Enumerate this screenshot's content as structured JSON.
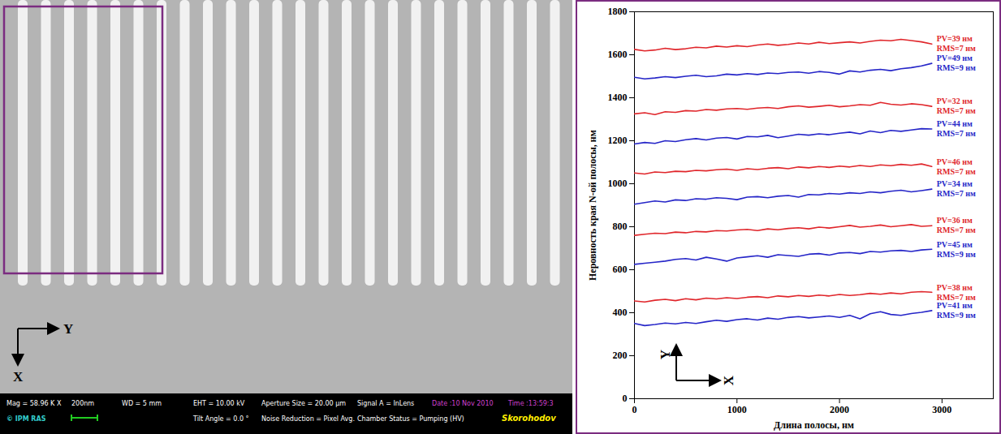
{
  "sem_image": {
    "axis_labels": {
      "right": "Y",
      "down": "X"
    },
    "info_bar": {
      "row1": [
        "Mag = 58.96 K X",
        "200nm",
        "WD =  5 mm",
        "EHT = 10.00 kV",
        "Aperture Size = 20.00 µm",
        "Signal A = InLens",
        "Date :10 Nov 2010",
        "Time :13:59:3"
      ],
      "row2": [
        "© IPM RAS",
        "Tilt Angle =  0.0 °",
        "Noise Reduction = Pixel Avg.",
        "Chamber Status = Pumping (HV)",
        "Skorohodov"
      ]
    }
  },
  "chart_data": {
    "type": "line",
    "xlabel": "Длина полосы, нм",
    "ylabel": "Неровность края N-ой полосы, нм",
    "axis_arrows": {
      "up": "Y",
      "right": "X"
    },
    "xlim": [
      0,
      3500
    ],
    "xticks": [
      0,
      1000,
      2000,
      3000
    ],
    "ylim": [
      0,
      1800
    ],
    "yticks": [
      0,
      200,
      400,
      600,
      800,
      1000,
      1200,
      1400,
      1600,
      1800
    ],
    "x": [
      0,
      100,
      200,
      300,
      400,
      500,
      600,
      700,
      800,
      900,
      1000,
      1100,
      1200,
      1300,
      1400,
      1500,
      1600,
      1700,
      1800,
      1900,
      2000,
      2100,
      2200,
      2300,
      2400,
      2500,
      2600,
      2700,
      2800,
      2900
    ],
    "series": [
      {
        "color": "#e0262b",
        "labels": [
          "PV=39 нм",
          "RMS=7 нм"
        ],
        "values": [
          1625,
          1618,
          1622,
          1630,
          1624,
          1628,
          1635,
          1632,
          1640,
          1636,
          1642,
          1638,
          1645,
          1650,
          1644,
          1648,
          1655,
          1650,
          1658,
          1652,
          1656,
          1660,
          1655,
          1662,
          1668,
          1665,
          1672,
          1666,
          1660,
          1650
        ]
      },
      {
        "color": "#2626c8",
        "labels": [
          "PV=49 нм",
          "RMS=9 нм"
        ],
        "values": [
          1495,
          1488,
          1492,
          1498,
          1494,
          1500,
          1505,
          1498,
          1502,
          1510,
          1506,
          1512,
          1508,
          1515,
          1512,
          1518,
          1520,
          1514,
          1522,
          1518,
          1510,
          1525,
          1520,
          1528,
          1532,
          1526,
          1535,
          1540,
          1548,
          1560
        ]
      },
      {
        "color": "#e0262b",
        "labels": [
          "PV=32 нм",
          "RMS=7 нм"
        ],
        "values": [
          1325,
          1330,
          1322,
          1335,
          1332,
          1340,
          1338,
          1345,
          1342,
          1348,
          1350,
          1346,
          1352,
          1355,
          1350,
          1358,
          1362,
          1356,
          1360,
          1365,
          1358,
          1362,
          1368,
          1365,
          1378,
          1370,
          1366,
          1372,
          1368,
          1360
        ]
      },
      {
        "color": "#2626c8",
        "labels": [
          "PV=44 нм",
          "RMS=7 нм"
        ],
        "values": [
          1185,
          1192,
          1188,
          1200,
          1196,
          1205,
          1210,
          1204,
          1212,
          1215,
          1208,
          1220,
          1218,
          1225,
          1214,
          1222,
          1230,
          1226,
          1232,
          1228,
          1235,
          1240,
          1232,
          1245,
          1238,
          1248,
          1244,
          1250,
          1256,
          1255
        ]
      },
      {
        "color": "#e0262b",
        "labels": [
          "PV=46 нм",
          "RMS=7 нм"
        ],
        "values": [
          1050,
          1045,
          1055,
          1052,
          1058,
          1056,
          1062,
          1060,
          1065,
          1068,
          1062,
          1070,
          1066,
          1072,
          1075,
          1070,
          1078,
          1074,
          1080,
          1076,
          1082,
          1078,
          1085,
          1080,
          1088,
          1084,
          1090,
          1086,
          1092,
          1080
        ]
      },
      {
        "color": "#2626c8",
        "labels": [
          "PV=34 нм",
          "RMS=7 нм"
        ],
        "values": [
          905,
          912,
          920,
          915,
          925,
          922,
          930,
          928,
          935,
          932,
          926,
          938,
          940,
          935,
          942,
          945,
          938,
          950,
          948,
          955,
          952,
          958,
          955,
          962,
          958,
          965,
          970,
          962,
          968,
          975
        ]
      },
      {
        "color": "#e0262b",
        "labels": [
          "PV=36 нм",
          "RMS=7 нм"
        ],
        "values": [
          760,
          765,
          770,
          768,
          775,
          772,
          778,
          776,
          782,
          780,
          785,
          788,
          782,
          790,
          786,
          792,
          795,
          790,
          798,
          794,
          800,
          806,
          798,
          802,
          808,
          800,
          805,
          810,
          802,
          805
        ]
      },
      {
        "color": "#2626c8",
        "labels": [
          "PV=45 нм",
          "RMS=9 нм"
        ],
        "values": [
          625,
          630,
          635,
          640,
          648,
          652,
          645,
          658,
          650,
          640,
          655,
          660,
          665,
          658,
          670,
          666,
          662,
          672,
          675,
          668,
          678,
          680,
          675,
          685,
          682,
          688,
          690,
          685,
          692,
          695
        ]
      },
      {
        "color": "#e0262b",
        "labels": [
          "PV=38 нм",
          "RMS=7 нм"
        ],
        "values": [
          455,
          450,
          458,
          462,
          456,
          465,
          460,
          468,
          464,
          470,
          466,
          472,
          475,
          470,
          478,
          474,
          480,
          476,
          482,
          478,
          485,
          480,
          484,
          490,
          486,
          492,
          488,
          495,
          498,
          495
        ]
      },
      {
        "color": "#2626c8",
        "labels": [
          "PV=41 нм",
          "RMS=9 нм"
        ],
        "values": [
          350,
          340,
          345,
          352,
          348,
          355,
          350,
          358,
          365,
          360,
          368,
          372,
          366,
          375,
          370,
          378,
          382,
          376,
          380,
          385,
          378,
          388,
          372,
          395,
          405,
          392,
          388,
          396,
          402,
          410
        ]
      }
    ]
  }
}
